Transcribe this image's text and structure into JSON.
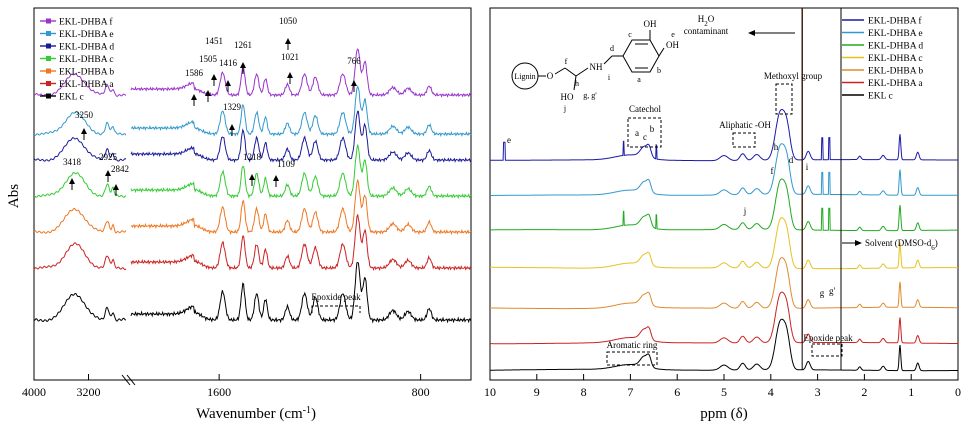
{
  "chart_data": [
    {
      "type": "line",
      "panel": "ftir",
      "ylabel": "Abs",
      "xlabel": "Wavenumber (cm",
      "xlabel_sup": "-1",
      "xlabel_close": ")",
      "x_direction": "descending",
      "axis_break": [
        2650,
        1950
      ],
      "x_ticks": [
        4000,
        3200,
        1600,
        800
      ],
      "x_tick_labels": [
        "4000",
        "3200",
        "1600",
        "800"
      ],
      "legend_position": "top-left",
      "series": [
        {
          "name": "EKL-DHBA f",
          "color": "#9933cc"
        },
        {
          "name": "EKL-DHBA e",
          "color": "#3399cc"
        },
        {
          "name": "EKL-DHBA d",
          "color": "#1a1a99"
        },
        {
          "name": "EKL-DHBA c",
          "color": "#33cc33"
        },
        {
          "name": "EKL-DHBA b",
          "color": "#ee7722"
        },
        {
          "name": "EKL-DHBA a",
          "color": "#cc2222"
        },
        {
          "name": "EKL c",
          "color": "#000000"
        }
      ],
      "annotations": [
        "3250",
        "3418",
        "2925",
        "2842",
        "1586",
        "1505",
        "1451",
        "1416",
        "1329",
        "1261",
        "1218",
        "1109",
        "1050",
        "1021",
        "766",
        "Epoxide peak"
      ]
    },
    {
      "type": "line",
      "panel": "nmr",
      "xlabel": "ppm (δ)",
      "x_direction": "descending",
      "x_ticks": [
        10,
        9,
        8,
        7,
        6,
        5,
        4,
        3,
        2,
        1,
        0
      ],
      "x_tick_labels": [
        "10",
        "9",
        "8",
        "7",
        "6",
        "5",
        "4",
        "3",
        "2",
        "1",
        "0"
      ],
      "legend_position": "top-right",
      "series": [
        {
          "name": "EKL-DHBA f",
          "color": "#1a1aa8"
        },
        {
          "name": "EKL-DHBA e",
          "color": "#3399cc"
        },
        {
          "name": "EKL-DHBA d",
          "color": "#22aa22"
        },
        {
          "name": "EKL-DHBA c",
          "color": "#e6c220"
        },
        {
          "name": "EKL-DHBA b",
          "color": "#e08a30"
        },
        {
          "name": "EKL-DHBA a",
          "color": "#cc2222"
        },
        {
          "name": "EKL c",
          "color": "#000000"
        }
      ],
      "annotations": {
        "water": [
          "H",
          "2",
          "O",
          "contaminant"
        ],
        "solvent": "Solvent (DMSO-d",
        "solvent_sub": "6",
        "solvent_close": ")",
        "catechol": "Catechol",
        "aliphatic": "Aliphatic -OH",
        "methoxyl": "Methoxyl group",
        "aromatic": "Aromatic ring",
        "epoxide": "Epoxide peak",
        "letters": [
          "e",
          "a",
          "c",
          "b",
          "h",
          "d",
          "f",
          "i",
          "j",
          "g",
          "g'"
        ]
      },
      "structure_labels": {
        "lignin": "Lignin",
        "o": "O",
        "nh": "NH",
        "ho": "HO",
        "oh_top": "OH",
        "oh_right": "OH",
        "letters": [
          "f",
          "h",
          "d",
          "c",
          "e",
          "i",
          "a",
          "b",
          "j",
          "g, g'"
        ]
      }
    }
  ]
}
